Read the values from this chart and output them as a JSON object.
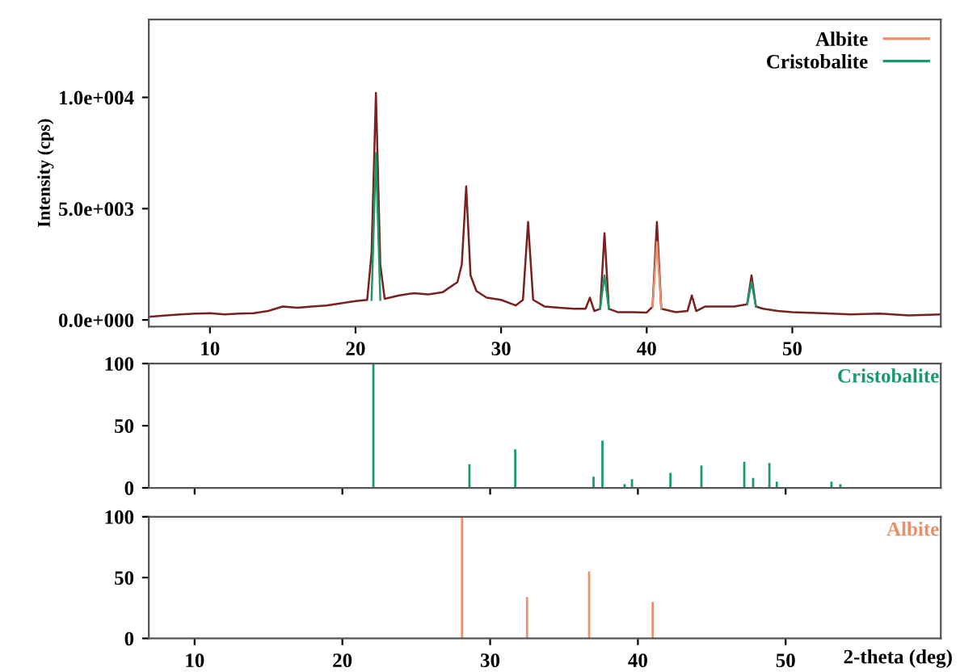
{
  "chart_data": [
    {
      "type": "line",
      "ylabel": "Intensity (cps)",
      "xlim": [
        5.8,
        60.2
      ],
      "ylim": [
        -300,
        13500
      ],
      "xticks": [
        10,
        20,
        30,
        40,
        50
      ],
      "yticks": [
        {
          "value": 0,
          "label": "0.0e+000"
        },
        {
          "value": 5000,
          "label": "5.0e+003"
        },
        {
          "value": 10000,
          "label": "1.0e+004"
        }
      ],
      "legend": "top right",
      "grid": false,
      "series": [
        {
          "color": "#7b2020",
          "x": [
            5.8,
            7,
            8,
            9,
            10,
            11,
            12,
            13,
            14,
            15,
            16,
            17,
            18,
            19,
            20,
            20.8,
            21.1,
            21.4,
            21.7,
            22,
            23,
            24,
            25,
            26,
            27,
            27.3,
            27.6,
            27.9,
            28.3,
            29,
            30,
            31,
            31.5,
            31.85,
            32.2,
            33,
            34,
            35,
            35.8,
            36.1,
            36.4,
            36.8,
            37.1,
            37.4,
            38,
            39,
            40,
            40.4,
            40.7,
            41,
            42,
            42.8,
            43.1,
            43.4,
            44,
            45,
            46,
            46.9,
            47.2,
            47.5,
            48,
            49,
            50,
            52,
            54,
            56,
            58,
            60.2
          ],
          "values": [
            140,
            200,
            250,
            280,
            300,
            250,
            280,
            300,
            400,
            600,
            550,
            600,
            650,
            750,
            850,
            900,
            3000,
            10200,
            2500,
            950,
            1100,
            1200,
            1150,
            1250,
            1700,
            2500,
            6000,
            2000,
            1300,
            1000,
            900,
            650,
            900,
            4400,
            900,
            600,
            550,
            500,
            500,
            1000,
            400,
            500,
            3900,
            500,
            350,
            350,
            330,
            600,
            4400,
            500,
            350,
            400,
            1100,
            400,
            600,
            600,
            600,
            700,
            2000,
            600,
            500,
            400,
            350,
            300,
            250,
            280,
            200,
            250
          ]
        },
        {
          "name": "Albite",
          "color": "#e8906a",
          "x": [
            40.4,
            40.7,
            41
          ],
          "values": [
            600,
            3500,
            500
          ]
        },
        {
          "name": "Cristobalite",
          "color": "#1a9a6c",
          "x": [
            21.1,
            21.4,
            21.7,
            29,
            36.8,
            37.1,
            37.4,
            42,
            46.9,
            47.2,
            47.5
          ],
          "values": [
            900,
            7500,
            900,
            null,
            500,
            2000,
            500,
            null,
            700,
            1700,
            600
          ]
        }
      ]
    },
    {
      "type": "bar",
      "xlim": [
        6.9,
        60.5
      ],
      "ylim": [
        0,
        100
      ],
      "xticks": [
        10,
        20,
        30,
        40,
        50
      ],
      "yticks": [
        0,
        50,
        100
      ],
      "tick_labels": "y",
      "grid": false,
      "series": [
        {
          "name": "Cristobalite",
          "color": "#1a9a6c",
          "x": [
            22.1,
            28.6,
            31.7,
            37.0,
            37.6,
            39.1,
            39.6,
            42.2,
            44.3,
            47.2,
            47.8,
            48.9,
            49.4,
            53.1,
            53.7
          ],
          "values": [
            100,
            19,
            31,
            9,
            38,
            3,
            7,
            12,
            18,
            21,
            8,
            20,
            5,
            5,
            3
          ]
        }
      ]
    },
    {
      "type": "bar",
      "xlabel": "2-theta (deg)",
      "xlim": [
        6.9,
        60.5
      ],
      "ylim": [
        0,
        100
      ],
      "xticks": [
        10,
        20,
        30,
        40,
        50
      ],
      "yticks": [
        0,
        50,
        100
      ],
      "grid": false,
      "series": [
        {
          "name": "Albite",
          "color": "#e8906a",
          "x": [
            28.1,
            32.5,
            36.7,
            41.0
          ],
          "values": [
            100,
            34,
            55,
            30
          ]
        }
      ]
    }
  ]
}
